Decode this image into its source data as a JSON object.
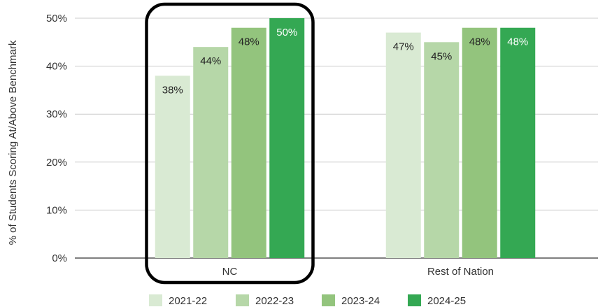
{
  "chart_data": {
    "type": "bar",
    "title": "",
    "xlabel": "",
    "ylabel": "% of Students Scoring At/Above Benchmark",
    "ylim": [
      0,
      50
    ],
    "yticks": [
      "0%",
      "10%",
      "20%",
      "30%",
      "40%",
      "50%"
    ],
    "categories": [
      "NC",
      "Rest of Nation"
    ],
    "series": [
      {
        "name": "2021-22",
        "values": [
          38,
          47
        ],
        "labels": [
          "38%",
          "47%"
        ],
        "color": "#d9ead3"
      },
      {
        "name": "2022-23",
        "values": [
          44,
          45
        ],
        "labels": [
          "44%",
          "45%"
        ],
        "color": "#b6d7a8"
      },
      {
        "name": "2023-24",
        "values": [
          48,
          48
        ],
        "labels": [
          "48%",
          "48%"
        ],
        "color": "#93c47d"
      },
      {
        "name": "2024-25",
        "values": [
          50,
          48
        ],
        "labels": [
          "50%",
          "48%"
        ],
        "color": "#34a853"
      }
    ],
    "label_colors": [
      "#222222",
      "#222222",
      "#222222",
      "#ffffff"
    ],
    "highlighted_category": "NC",
    "legend_position": "bottom",
    "grid": true
  }
}
